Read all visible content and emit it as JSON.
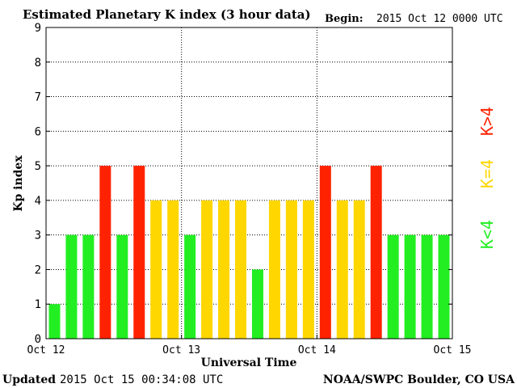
{
  "header": {
    "title": "Estimated Planetary K index (3 hour data)",
    "begin_label": "Begin:",
    "begin_value": "2015 Oct 12 0000 UTC"
  },
  "footer": {
    "updated_label": "Updated",
    "updated_value": "2015 Oct 15 00:34:08 UTC",
    "source": "NOAA/SWPC Boulder, CO USA"
  },
  "legend": {
    "items": [
      {
        "label": "K<4",
        "color": "#22ee22"
      },
      {
        "label": "K=4",
        "color": "#ffd700"
      },
      {
        "label": "K>4",
        "color": "#ff2200"
      }
    ]
  },
  "chart_data": {
    "type": "bar",
    "title": "Estimated Planetary K index (3 hour data)",
    "xlabel": "Universal Time",
    "ylabel": "Kp index",
    "ylim": [
      0,
      9
    ],
    "yticks": [
      "0",
      "1",
      "2",
      "3",
      "4",
      "5",
      "6",
      "7",
      "8",
      "9"
    ],
    "xticks": [
      "Oct 12",
      "Oct 13",
      "Oct 14",
      "Oct 15"
    ],
    "values": [
      1,
      3,
      3,
      5,
      3,
      5,
      4,
      4,
      3,
      4,
      4,
      4,
      2,
      4,
      4,
      4,
      5,
      4,
      4,
      5,
      3,
      3,
      3,
      3
    ],
    "colors": {
      "low": "#22ee22",
      "equal": "#ffd700",
      "high": "#ff2200"
    },
    "grid": true
  }
}
